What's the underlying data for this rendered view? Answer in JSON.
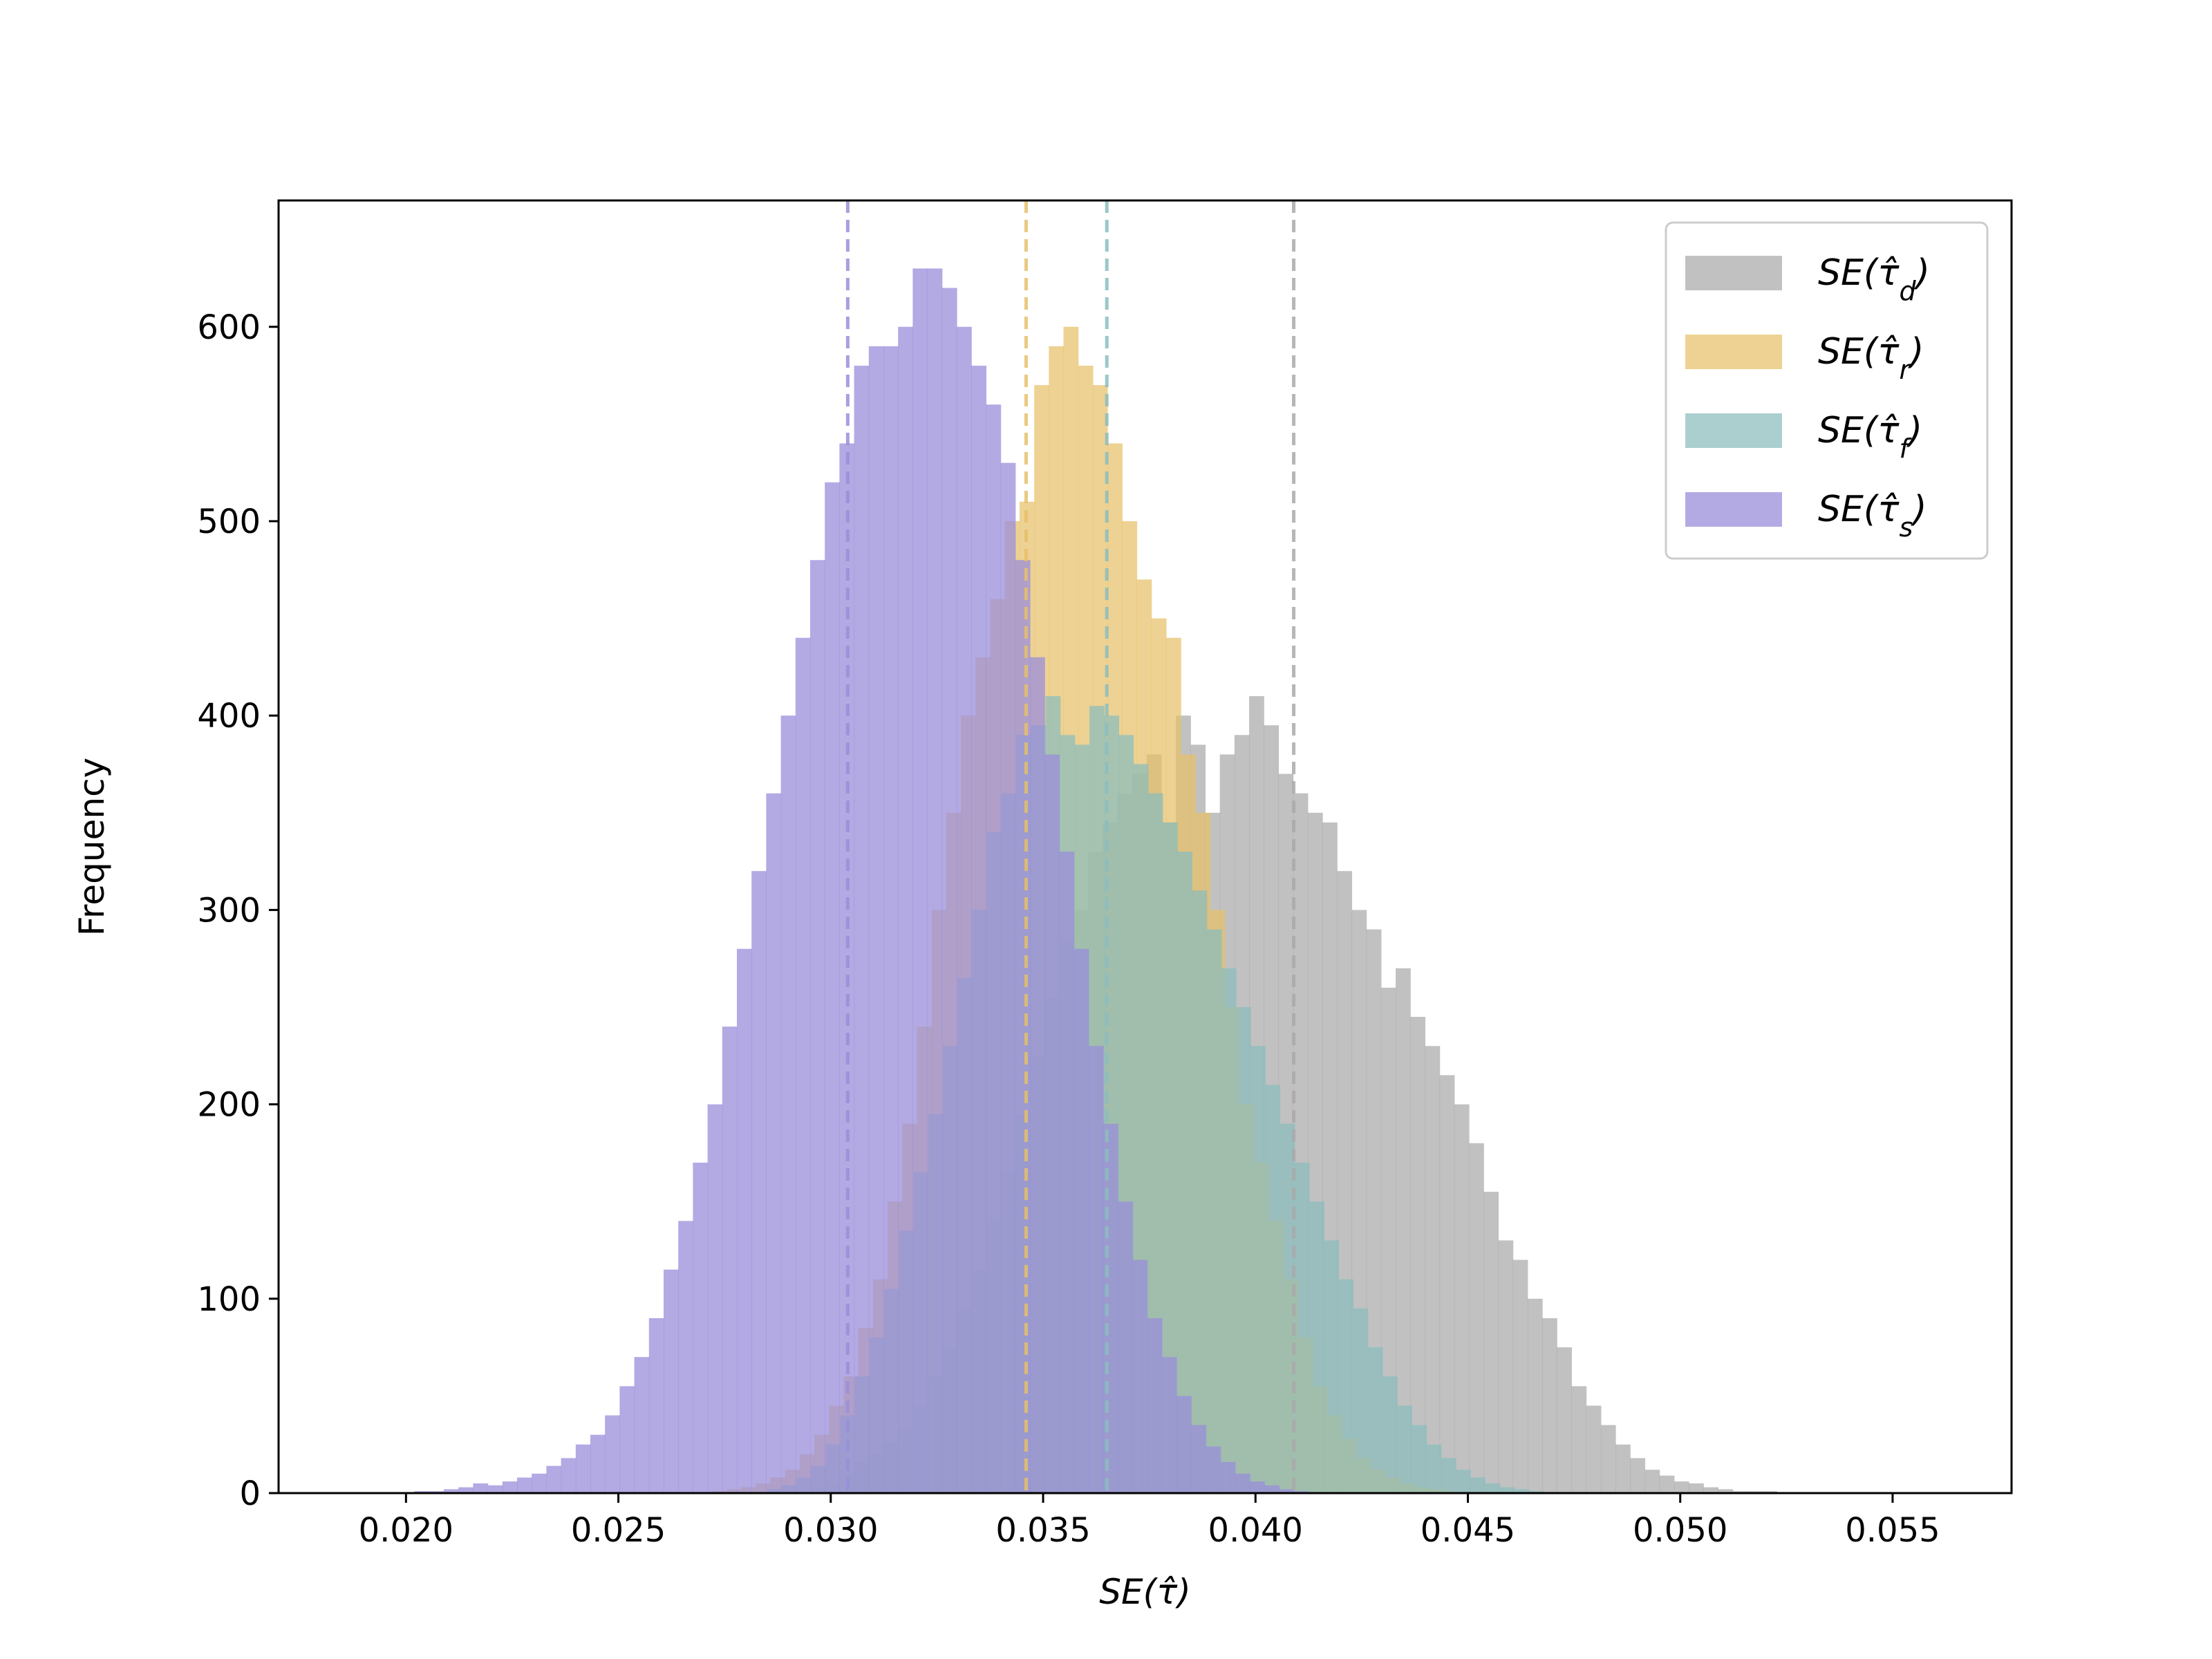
{
  "chart_data": {
    "type": "histogram",
    "xlabel": "SE(τ̂)",
    "ylabel": "Frequency",
    "xlim": [
      0.017,
      0.0578
    ],
    "ylim": [
      0,
      665
    ],
    "xticks": [
      "0.020",
      "0.025",
      "0.030",
      "0.035",
      "0.040",
      "0.045",
      "0.050",
      "0.055"
    ],
    "xtick_values": [
      0.02,
      0.025,
      0.03,
      0.035,
      0.04,
      0.045,
      0.05,
      0.055
    ],
    "yticks": [
      "0",
      "100",
      "200",
      "300",
      "400",
      "500",
      "600"
    ],
    "ytick_values": [
      0,
      100,
      200,
      300,
      400,
      500,
      600
    ],
    "bin_width": 0.000345,
    "legend_position": "upper-right",
    "series": [
      {
        "name": "SE(τ̂d)",
        "base": "SE(τ̂",
        "sub": "d",
        "color": "#a9a9a9",
        "opacity": 0.72,
        "mean_line": 0.0409,
        "bin_start": 0.0295,
        "counts": [
          3,
          6,
          10,
          16,
          20,
          26,
          33,
          45,
          60,
          75,
          95,
          115,
          140,
          165,
          195,
          225,
          255,
          285,
          300,
          330,
          345,
          360,
          370,
          380,
          345,
          400,
          385,
          350,
          380,
          390,
          410,
          395,
          370,
          360,
          350,
          345,
          320,
          300,
          290,
          260,
          270,
          245,
          230,
          215,
          200,
          180,
          155,
          130,
          120,
          100,
          90,
          75,
          55,
          45,
          35,
          25,
          18,
          12,
          9,
          6,
          5,
          3,
          2,
          1,
          1,
          1
        ]
      },
      {
        "name": "SE(τ̂r)",
        "base": "SE(τ̂",
        "sub": "r",
        "color": "#e6c06a",
        "opacity": 0.72,
        "mean_line": 0.0346,
        "bin_start": 0.0272,
        "counts": [
          1,
          2,
          3,
          5,
          8,
          12,
          20,
          30,
          45,
          60,
          85,
          110,
          150,
          190,
          240,
          300,
          350,
          400,
          430,
          460,
          500,
          510,
          570,
          590,
          600,
          580,
          570,
          540,
          500,
          470,
          450,
          440,
          380,
          350,
          300,
          250,
          200,
          170,
          140,
          110,
          80,
          55,
          40,
          28,
          18,
          12,
          8,
          5,
          3,
          2,
          1
        ]
      },
      {
        "name": "SE(τ̂f)",
        "base": "SE(τ̂",
        "sub": "f",
        "color": "#8bbdbd",
        "opacity": 0.72,
        "mean_line": 0.0365,
        "bin_start": 0.0285,
        "counts": [
          2,
          4,
          8,
          14,
          25,
          40,
          60,
          80,
          105,
          135,
          165,
          195,
          230,
          265,
          300,
          340,
          360,
          390,
          395,
          410,
          390,
          385,
          405,
          400,
          390,
          375,
          360,
          345,
          330,
          310,
          290,
          270,
          250,
          230,
          210,
          190,
          170,
          150,
          130,
          110,
          95,
          75,
          60,
          45,
          35,
          25,
          18,
          12,
          8,
          5,
          3,
          2,
          1
        ]
      },
      {
        "name": "SE(τ̂s)",
        "base": "SE(τ̂",
        "sub": "s",
        "color": "#9a8edb",
        "opacity": 0.75,
        "mean_line": 0.0304,
        "bin_start": 0.0202,
        "counts": [
          1,
          1,
          2,
          3,
          5,
          4,
          6,
          8,
          10,
          14,
          18,
          25,
          30,
          40,
          55,
          70,
          90,
          115,
          140,
          170,
          200,
          240,
          280,
          320,
          360,
          400,
          440,
          480,
          520,
          540,
          580,
          590,
          590,
          600,
          630,
          630,
          620,
          600,
          580,
          560,
          530,
          480,
          430,
          380,
          330,
          280,
          230,
          190,
          150,
          120,
          90,
          70,
          50,
          35,
          24,
          16,
          10,
          6,
          4,
          2,
          1
        ]
      }
    ]
  }
}
